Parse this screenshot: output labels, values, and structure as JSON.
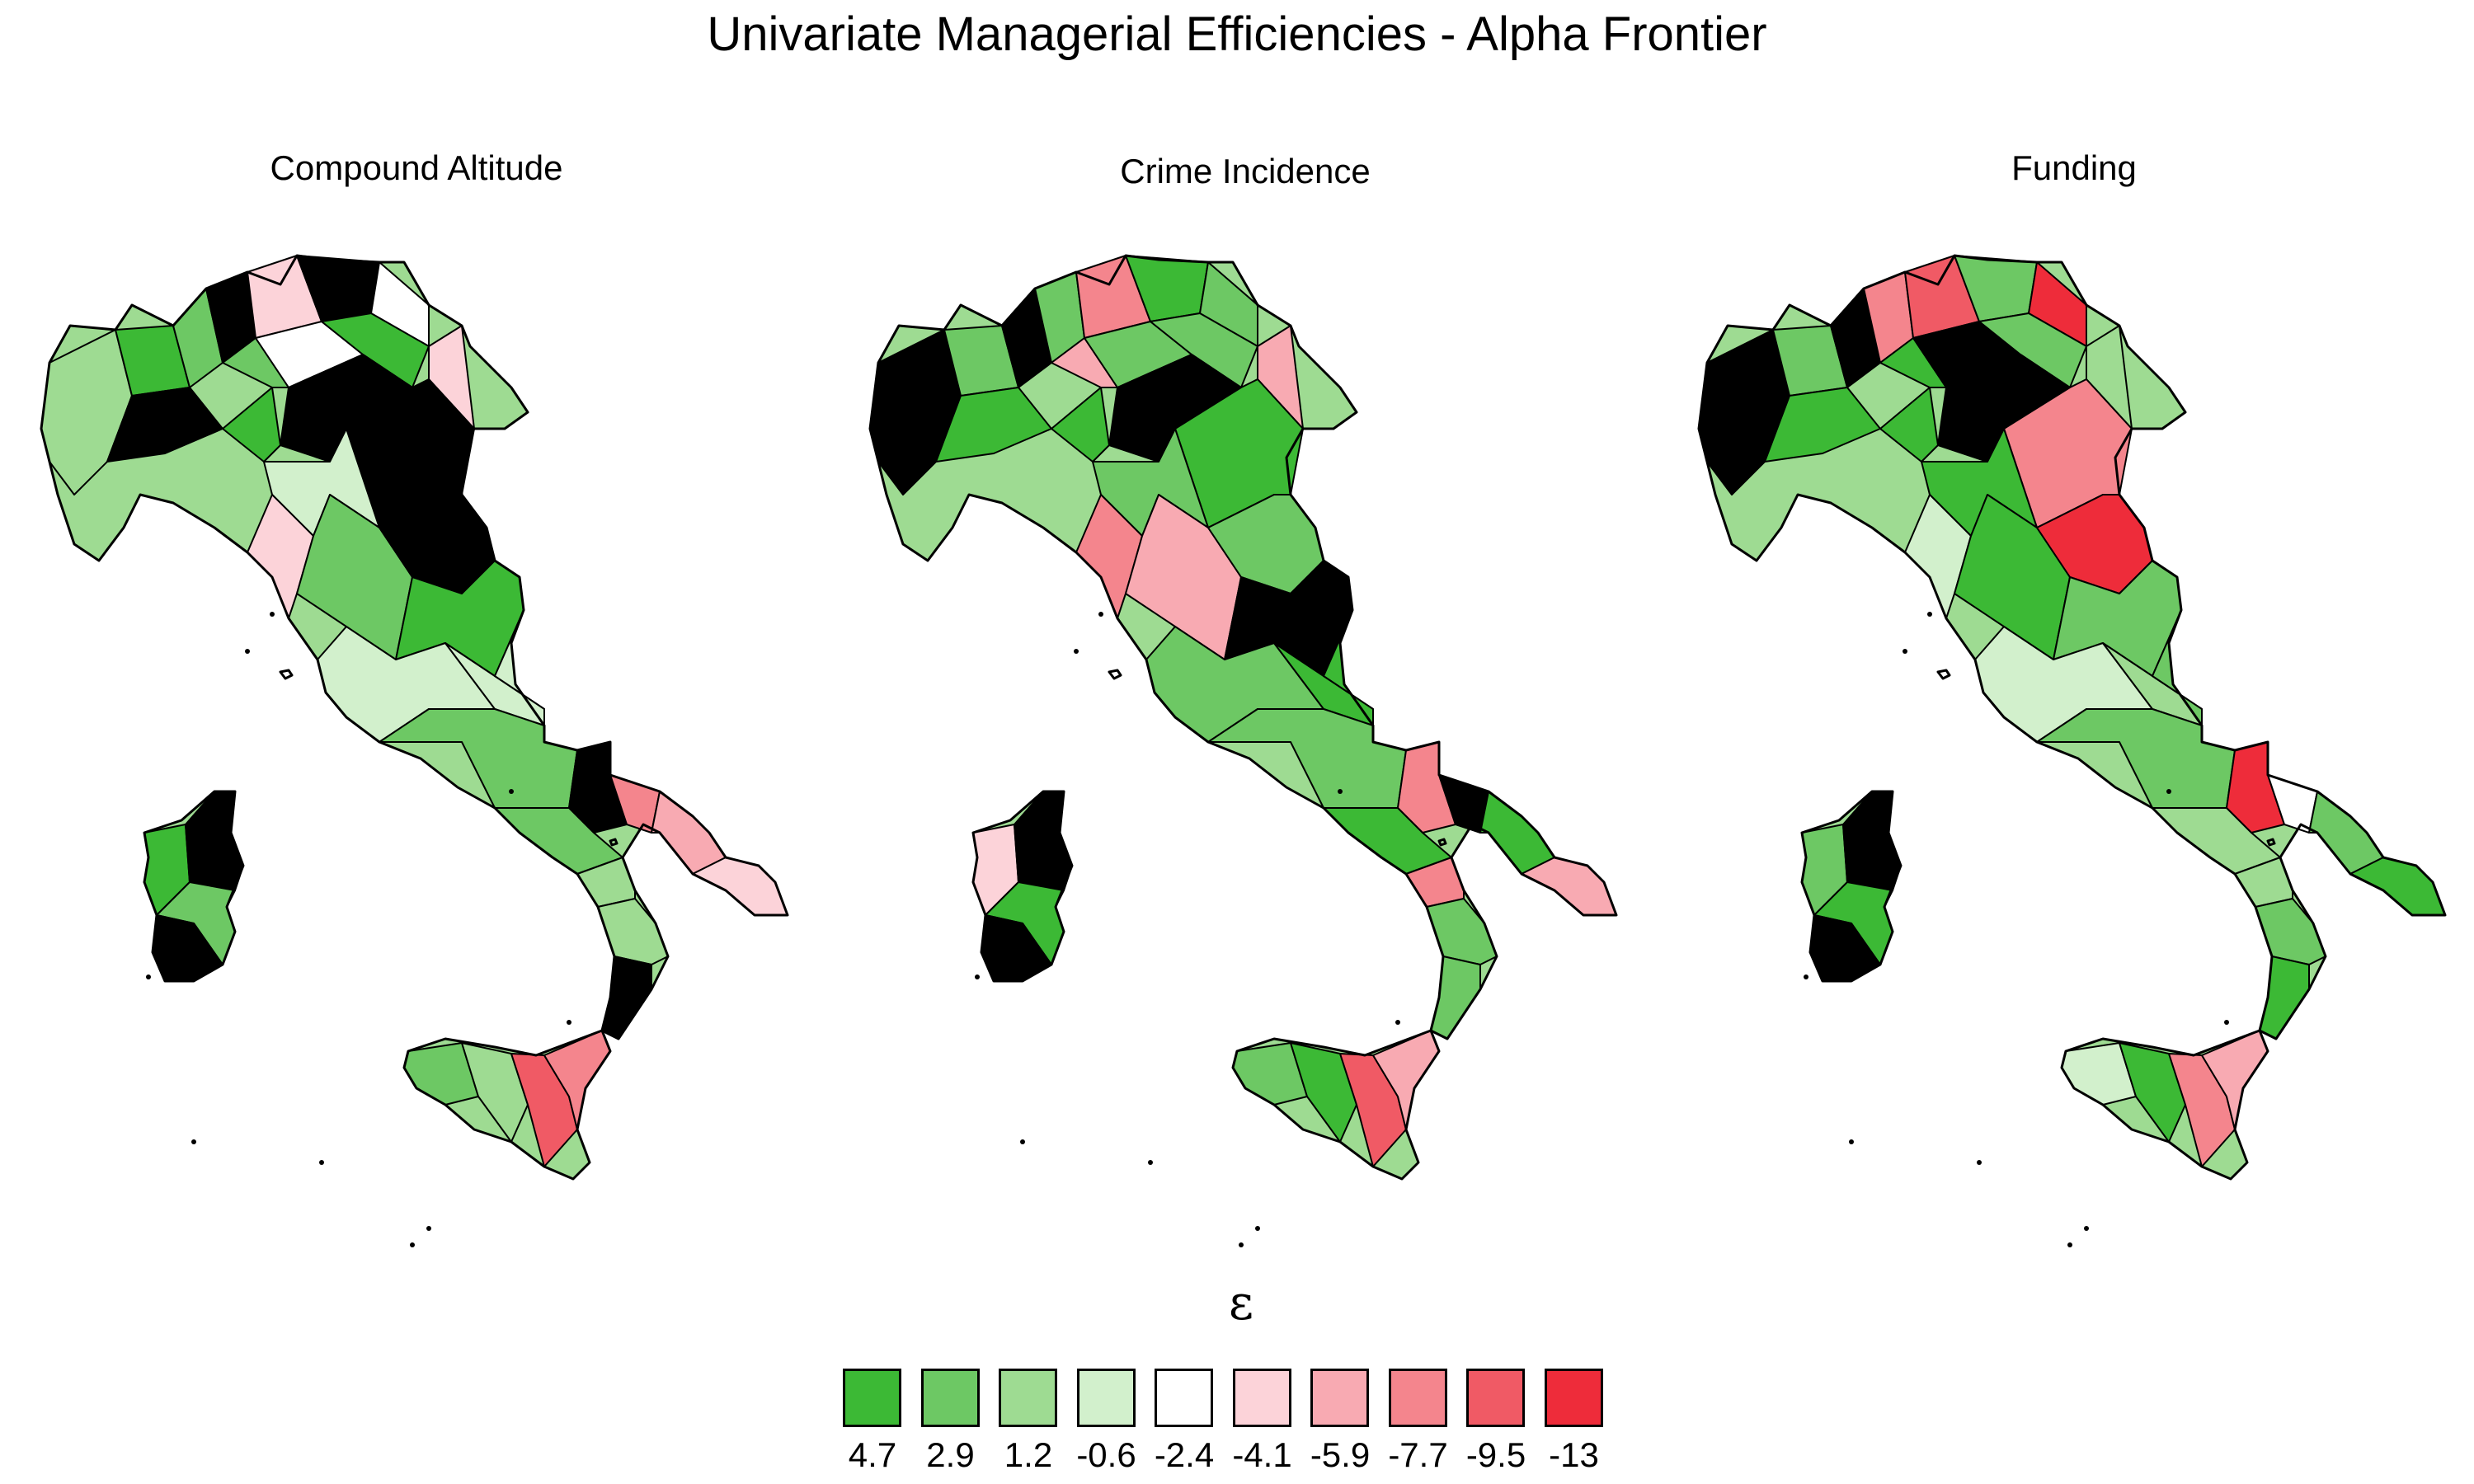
{
  "title": "Univariate Managerial Efficiencies - Alpha Frontier",
  "panels": [
    {
      "title": "Compound Altitude"
    },
    {
      "title": "Crime Incidence"
    },
    {
      "title": "Funding"
    }
  ],
  "legend": {
    "title": "ε",
    "labels": [
      "4.7",
      "2.9",
      "1.2",
      "-0.6",
      "-2.4",
      "-4.1",
      "-5.9",
      "-7.7",
      "-9.5",
      "-13"
    ],
    "colors": [
      "#3cb935",
      "#6dc864",
      "#9edb92",
      "#d2f0cc",
      "#ffffff",
      "#fcd3d9",
      "#f8aab2",
      "#f4858d",
      "#f05a65",
      "#ee2c3a"
    ],
    "missing_color": "#000000"
  },
  "chart_data": {
    "type": "choropleth",
    "region": "Italy (administrative districts)",
    "variables": [
      "Compound Altitude",
      "Crime Incidence",
      "Funding"
    ],
    "color_scale_breaks": [
      4.7,
      2.9,
      1.2,
      -0.6,
      -2.4,
      -4.1,
      -5.9,
      -7.7,
      -9.5,
      -13
    ]
  }
}
